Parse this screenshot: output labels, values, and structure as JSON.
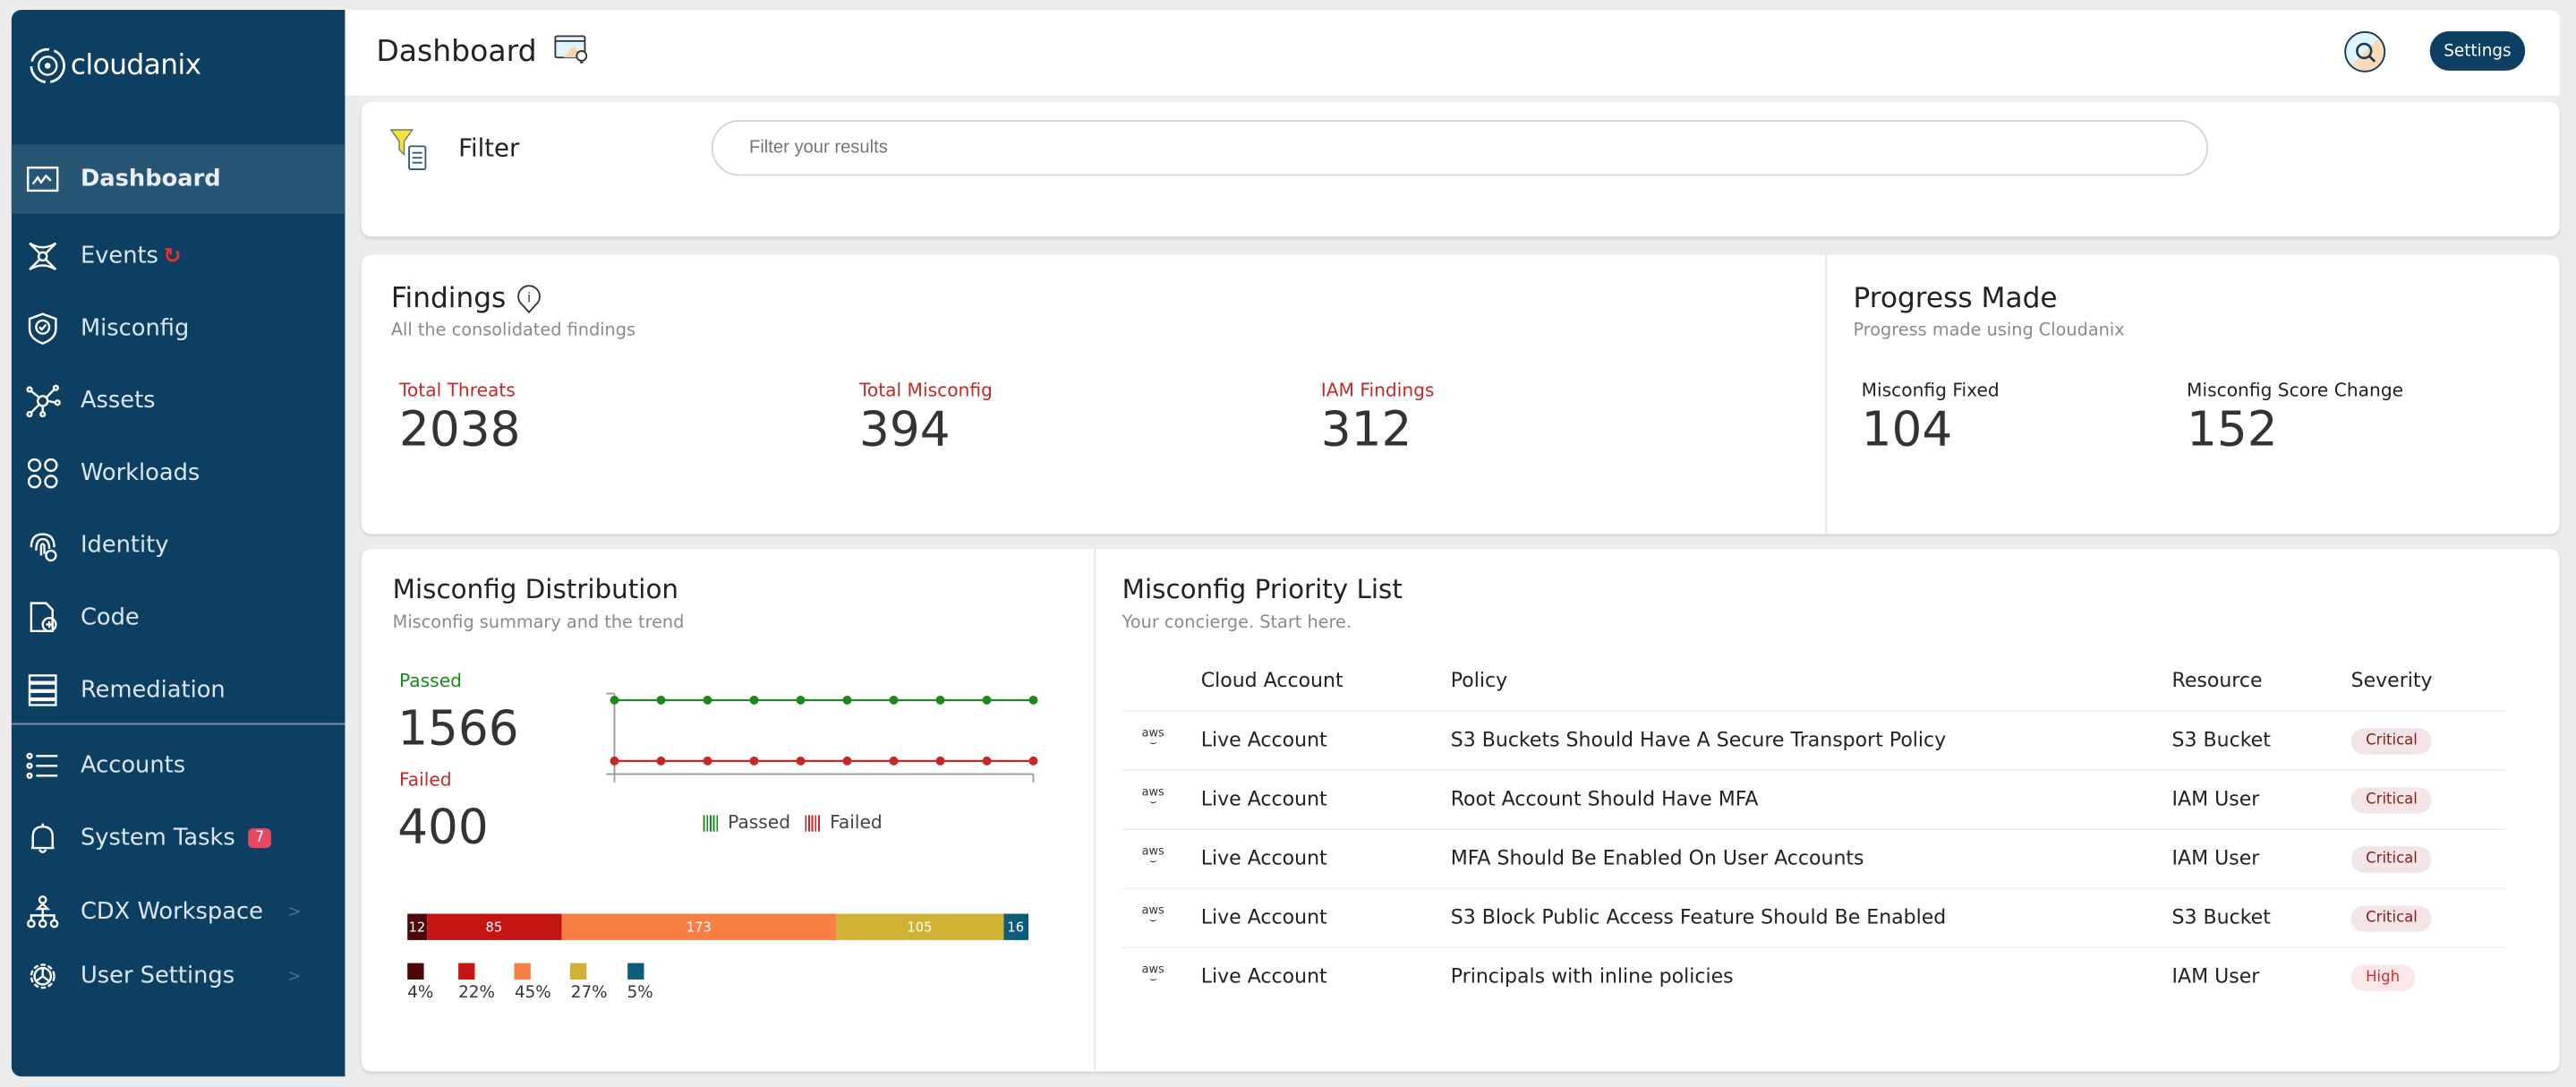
{
  "app": {
    "logo": "cloudanix"
  },
  "sidebar": {
    "items": [
      {
        "label": "Dashboard",
        "icon": "chart-icon",
        "active": true
      },
      {
        "label": "Events",
        "icon": "events-icon",
        "badge_icon": "refresh-icon"
      },
      {
        "label": "Misconfig",
        "icon": "shield-check-icon"
      },
      {
        "label": "Assets",
        "icon": "network-icon"
      },
      {
        "label": "Workloads",
        "icon": "circles-icon"
      },
      {
        "label": "Identity",
        "icon": "fingerprint-icon"
      },
      {
        "label": "Code",
        "icon": "code-file-icon"
      },
      {
        "label": "Remediation",
        "icon": "stack-icon"
      },
      {
        "label": "Accounts",
        "icon": "list-icon"
      },
      {
        "label": "System Tasks",
        "icon": "bell-icon",
        "badge": "7"
      },
      {
        "label": "CDX Workspace",
        "icon": "org-icon",
        "chevron": ">"
      },
      {
        "label": "User Settings",
        "icon": "gear-icon",
        "chevron": ">"
      }
    ]
  },
  "header": {
    "title": "Dashboard",
    "settings_label": "Settings"
  },
  "filter": {
    "label": "Filter",
    "placeholder": "Filter your results"
  },
  "findings": {
    "title": "Findings",
    "subtitle": "All the consolidated findings",
    "stats": [
      {
        "label": "Total Threats",
        "value": "2038"
      },
      {
        "label": "Total Misconfig",
        "value": "394"
      },
      {
        "label": "IAM Findings",
        "value": "312"
      }
    ]
  },
  "progress": {
    "title": "Progress Made",
    "subtitle": "Progress made using Cloudanix",
    "stats": [
      {
        "label": "Misconfig Fixed",
        "value": "104"
      },
      {
        "label": "Misconfig Score Change",
        "value": "152"
      }
    ]
  },
  "distribution": {
    "title": "Misconfig Distribution",
    "subtitle": "Misconfig summary and the trend",
    "passed_label": "Passed",
    "passed_value": "1566",
    "failed_label": "Failed",
    "failed_value": "400",
    "legend": [
      "Passed",
      "Failed"
    ],
    "colors": {
      "passed": "#1a8a1a",
      "failed": "#c62828"
    },
    "trend_points": 10,
    "severity_bar": [
      {
        "value": "12",
        "pct": "4%",
        "color": "#4d0707"
      },
      {
        "value": "85",
        "pct": "22%",
        "color": "#c41414"
      },
      {
        "value": "173",
        "pct": "45%",
        "color": "#f77f46"
      },
      {
        "value": "105",
        "pct": "27%",
        "color": "#cfb234"
      },
      {
        "value": "16",
        "pct": "5%",
        "color": "#0c5d78"
      }
    ]
  },
  "priority": {
    "title": "Misconfig Priority List",
    "subtitle": "Your concierge. Start here.",
    "columns": [
      "Cloud Account",
      "Policy",
      "Resource",
      "Severity"
    ],
    "rows": [
      {
        "icon": "aws",
        "account": "Live Account",
        "policy": "S3 Buckets Should Have A Secure Transport Policy",
        "resource": "S3 Bucket",
        "severity": "Critical"
      },
      {
        "icon": "aws",
        "account": "Live Account",
        "policy": "Root Account Should Have MFA",
        "resource": "IAM User",
        "severity": "Critical"
      },
      {
        "icon": "aws",
        "account": "Live Account",
        "policy": "MFA Should Be Enabled On User Accounts",
        "resource": "IAM User",
        "severity": "Critical"
      },
      {
        "icon": "aws",
        "account": "Live Account",
        "policy": "S3 Block Public Access Feature Should Be Enabled",
        "resource": "S3 Bucket",
        "severity": "Critical"
      },
      {
        "icon": "aws",
        "account": "Live Account",
        "policy": "Principals with inline policies",
        "resource": "IAM User",
        "severity": "High"
      }
    ]
  }
}
